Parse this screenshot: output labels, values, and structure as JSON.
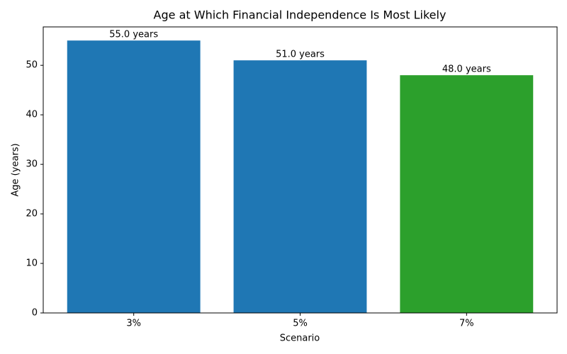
{
  "chart_data": {
    "type": "bar",
    "title": "Age at Which Financial Independence Is Most Likely",
    "x_label": "Scenario",
    "y_label": "Age (years)",
    "categories": [
      "3%",
      "5%",
      "7%"
    ],
    "values": [
      55,
      51,
      48
    ],
    "value_labels": [
      "55.0 years",
      "51.0 years",
      "48.0 years"
    ],
    "colors": [
      "#1f77b4",
      "#1f77b4",
      "#2ca02c"
    ],
    "ylim": [
      0,
      57.75
    ],
    "yticks": [
      0,
      10,
      20,
      30,
      40,
      50
    ],
    "grid": false
  }
}
